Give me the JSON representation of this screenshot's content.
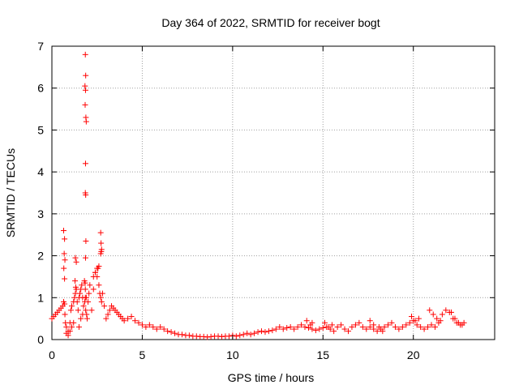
{
  "chart_data": {
    "type": "scatter",
    "title": "Day 364 of 2022, SRMTID for receiver bogt",
    "xlabel": "GPS time / hours",
    "ylabel": "SRMTID / TECUs",
    "xlim": [
      0,
      24.5
    ],
    "ylim": [
      0,
      7
    ],
    "xticks": [
      0,
      5,
      10,
      15,
      20
    ],
    "yticks": [
      0,
      1,
      2,
      3,
      4,
      5,
      6,
      7
    ],
    "grid": true,
    "marker": "+",
    "color": "#ff0000",
    "series": [
      {
        "name": "SRMTID",
        "x": [
          0.0,
          0.1,
          0.2,
          0.3,
          0.4,
          0.5,
          0.6,
          0.65,
          0.7,
          0.72,
          0.75,
          0.8,
          0.9,
          1.0,
          1.05,
          1.1,
          1.2,
          1.25,
          1.3,
          1.35,
          1.4,
          1.45,
          1.5,
          1.55,
          1.6,
          1.65,
          1.7,
          1.75,
          1.8,
          1.82,
          1.85,
          1.87,
          1.9,
          1.92,
          1.95,
          2.0,
          2.05,
          2.1,
          2.2,
          2.3,
          2.4,
          2.5,
          2.55,
          2.6,
          2.65,
          2.7,
          2.75,
          2.8,
          2.9,
          3.0,
          3.1,
          3.2,
          3.3,
          3.4,
          3.5,
          3.6,
          3.7,
          3.8,
          3.9,
          4.0,
          4.2,
          4.4,
          4.6,
          4.8,
          5.0,
          5.2,
          5.4,
          5.6,
          5.8,
          6.0,
          6.2,
          6.4,
          6.6,
          6.8,
          7.0,
          7.2,
          7.4,
          7.6,
          7.8,
          8.0,
          8.2,
          8.4,
          8.6,
          8.8,
          9.0,
          9.2,
          9.4,
          9.6,
          9.8,
          10.0,
          10.2,
          10.4,
          10.6,
          10.8,
          11.0,
          11.2,
          11.4,
          11.6,
          11.8,
          12.0,
          12.2,
          12.4,
          12.6,
          12.8,
          13.0,
          13.2,
          13.4,
          13.6,
          13.8,
          14.0,
          14.2,
          14.4,
          14.6,
          14.8,
          15.0,
          15.2,
          15.4,
          15.6,
          15.8,
          16.0,
          16.2,
          16.4,
          16.6,
          16.8,
          17.0,
          17.2,
          17.4,
          17.6,
          17.8,
          18.0,
          18.2,
          18.4,
          18.6,
          18.8,
          19.0,
          19.2,
          19.4,
          19.6,
          19.8,
          20.0,
          20.2,
          20.4,
          20.6,
          20.8,
          21.0,
          21.2,
          21.4,
          21.6,
          21.8,
          22.0,
          22.2,
          22.4,
          22.6,
          22.8,
          0.65,
          0.7,
          0.68,
          0.72,
          0.66,
          0.7,
          1.3,
          1.35,
          1.28,
          1.32,
          1.85,
          1.87,
          1.83,
          1.86,
          1.84,
          1.88,
          1.9,
          1.86,
          1.85,
          1.87,
          1.88,
          1.86,
          1.84,
          1.85,
          2.7,
          2.72,
          2.75,
          2.73,
          2.7,
          2.6,
          2.5,
          2.4,
          2.3,
          1.5,
          1.6,
          1.7,
          1.0,
          1.1,
          1.2,
          0.9,
          0.8,
          14.1,
          14.3,
          14.4,
          15.1,
          15.3,
          15.5,
          17.6,
          17.8,
          18.1,
          18.3,
          19.9,
          20.1,
          20.3,
          20.9,
          21.1,
          21.3,
          21.5,
          22.1,
          22.3,
          22.5,
          22.7
        ],
        "y": [
          0.5,
          0.55,
          0.6,
          0.65,
          0.7,
          0.75,
          0.8,
          0.9,
          0.85,
          0.6,
          0.4,
          0.3,
          0.2,
          0.4,
          0.7,
          0.8,
          0.9,
          1.0,
          1.1,
          1.2,
          0.9,
          0.7,
          1.0,
          1.1,
          1.2,
          1.3,
          1.0,
          0.8,
          1.4,
          0.9,
          1.2,
          0.7,
          1.0,
          0.6,
          0.5,
          0.9,
          1.1,
          1.3,
          0.7,
          1.2,
          1.6,
          1.5,
          1.7,
          1.3,
          1.1,
          1.0,
          0.9,
          1.1,
          0.8,
          0.5,
          0.6,
          0.7,
          0.8,
          0.75,
          0.7,
          0.65,
          0.6,
          0.55,
          0.5,
          0.45,
          0.5,
          0.55,
          0.45,
          0.4,
          0.35,
          0.3,
          0.35,
          0.3,
          0.25,
          0.3,
          0.25,
          0.2,
          0.18,
          0.15,
          0.12,
          0.12,
          0.1,
          0.1,
          0.08,
          0.08,
          0.07,
          0.07,
          0.06,
          0.07,
          0.08,
          0.08,
          0.07,
          0.08,
          0.08,
          0.1,
          0.08,
          0.1,
          0.12,
          0.15,
          0.12,
          0.15,
          0.18,
          0.2,
          0.18,
          0.2,
          0.22,
          0.25,
          0.3,
          0.25,
          0.28,
          0.3,
          0.25,
          0.3,
          0.35,
          0.3,
          0.28,
          0.25,
          0.22,
          0.25,
          0.28,
          0.3,
          0.25,
          0.2,
          0.3,
          0.35,
          0.25,
          0.2,
          0.3,
          0.35,
          0.4,
          0.3,
          0.25,
          0.3,
          0.25,
          0.2,
          0.25,
          0.3,
          0.35,
          0.4,
          0.3,
          0.25,
          0.3,
          0.35,
          0.4,
          0.45,
          0.35,
          0.3,
          0.25,
          0.3,
          0.35,
          0.3,
          0.4,
          0.6,
          0.7,
          0.65,
          0.5,
          0.4,
          0.35,
          0.4,
          2.6,
          2.4,
          2.05,
          1.9,
          1.7,
          1.45,
          1.95,
          1.85,
          1.4,
          1.25,
          6.8,
          6.3,
          6.05,
          5.95,
          5.6,
          5.3,
          5.2,
          4.2,
          3.5,
          3.45,
          2.35,
          1.95,
          1.35,
          1.0,
          2.55,
          2.3,
          2.15,
          2.1,
          2.05,
          1.75,
          1.7,
          1.6,
          1.5,
          0.3,
          0.5,
          0.6,
          0.2,
          0.3,
          0.4,
          0.1,
          0.15,
          0.45,
          0.35,
          0.4,
          0.4,
          0.3,
          0.35,
          0.45,
          0.35,
          0.3,
          0.2,
          0.55,
          0.45,
          0.5,
          0.7,
          0.6,
          0.5,
          0.45,
          0.65,
          0.5,
          0.4,
          0.35
        ]
      }
    ]
  }
}
